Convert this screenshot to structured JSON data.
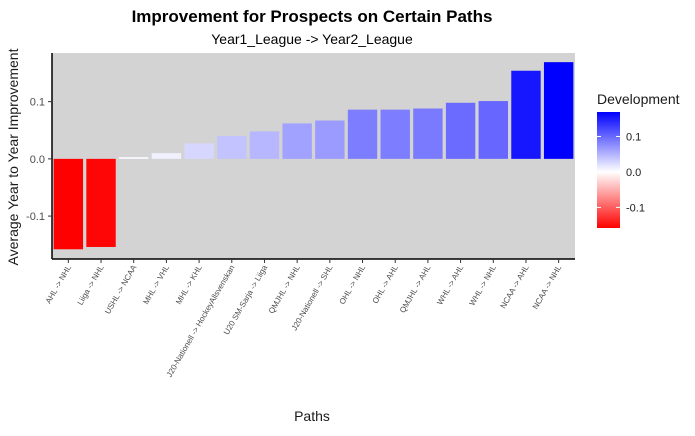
{
  "chart_data": {
    "type": "bar",
    "title": "Improvement for Prospects on Certain Paths",
    "subtitle": "Year1_League -> Year2_League",
    "xlabel": "Paths",
    "ylabel": "Average Year to Year Improvement",
    "categories": [
      "AHL -> NHL",
      "Liiga -> NHL",
      "USHL -> NCAA",
      "MHL -> VHL",
      "MHL -> KHL",
      "J20-Nationell -> HockeyAllsvenskan",
      "U20 SM-Sarja -> Liiga",
      "QMJHL -> NHL",
      "J20-Nationell -> SHL",
      "OHL -> NHL",
      "OHL -> AHL",
      "QMJHL -> AHL",
      "WHL -> AHL",
      "WHL -> NHL",
      "NCAA -> AHL",
      "NCAA -> NHL"
    ],
    "values": [
      -0.158,
      -0.154,
      0.003,
      0.01,
      0.027,
      0.04,
      0.048,
      0.062,
      0.067,
      0.086,
      0.086,
      0.088,
      0.098,
      0.101,
      0.154,
      0.169
    ],
    "ylim": [
      -0.175,
      0.185
    ],
    "yticks": [
      -0.1,
      0.0,
      0.1
    ],
    "ytick_labels": [
      "-0.1",
      "0.0",
      "0.1"
    ],
    "grid": false,
    "panel_background": "#d3d3d3",
    "legend": {
      "title": "Development",
      "position": "right",
      "type": "colorbar",
      "range": [
        -0.158,
        0.169
      ],
      "ticks": [
        -0.1,
        0.0,
        0.1
      ],
      "tick_labels": [
        "-0.1",
        "0.0",
        "0.1"
      ],
      "low_color": "#ff0000",
      "mid_color": "#ffffff",
      "high_color": "#0000ff"
    }
  }
}
